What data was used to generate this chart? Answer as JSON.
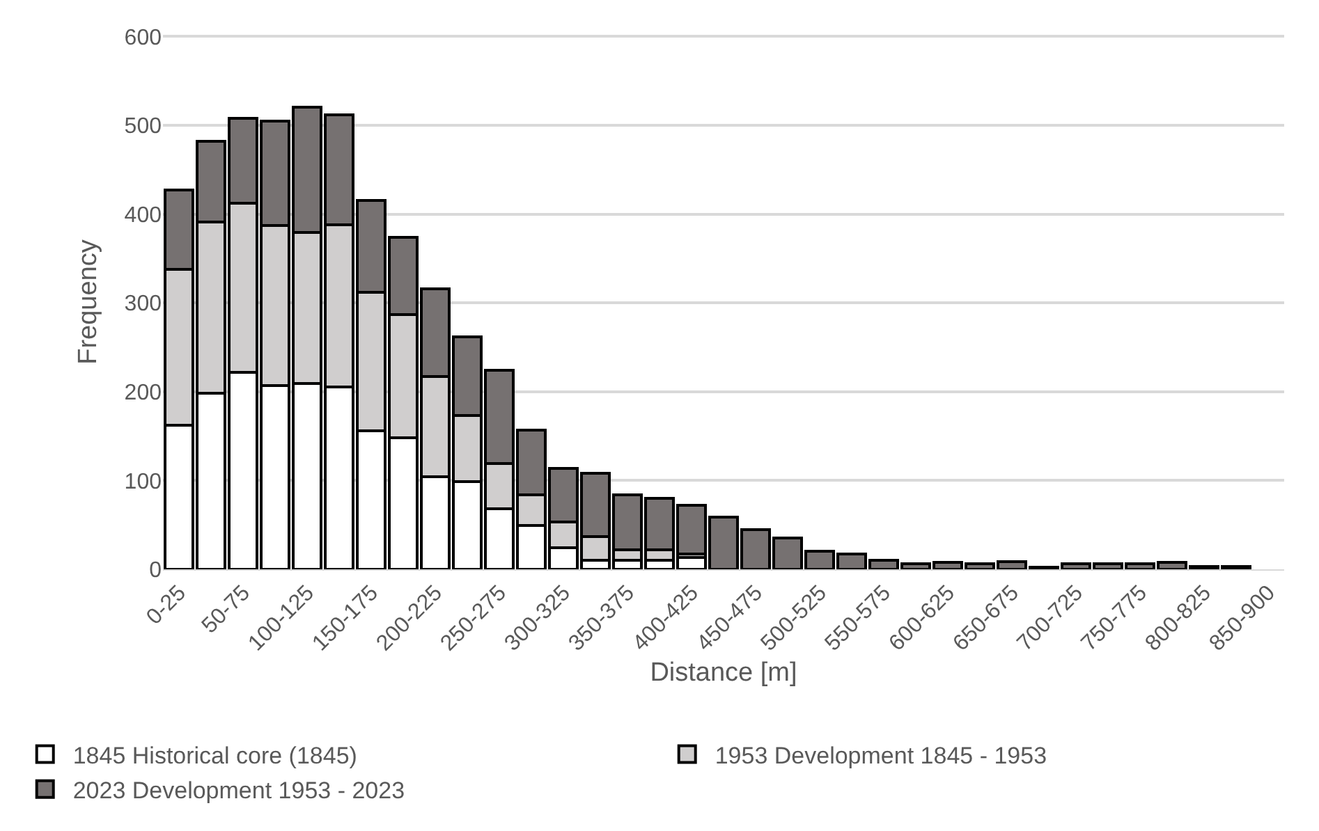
{
  "chart_data": {
    "type": "bar",
    "stacked": true,
    "xlabel": "Distance [m]",
    "ylabel": "Frequency",
    "categories": [
      "0-25",
      null,
      "50-75",
      null,
      "100-125",
      null,
      "150-175",
      null,
      "200-225",
      null,
      "250-275",
      null,
      "300-325",
      null,
      "350-375",
      null,
      "400-425",
      null,
      "450-475",
      null,
      "500-525",
      null,
      "550-575",
      null,
      "600-625",
      null,
      "650-675",
      null,
      "700-725",
      null,
      "750-775",
      null,
      "800-825",
      null,
      "850-900"
    ],
    "series": [
      {
        "name": "1845 Historical core (1845)",
        "color": "#ffffff",
        "values": [
          162,
          198,
          222,
          207,
          209,
          205,
          156,
          148,
          104,
          99,
          68,
          49,
          24,
          10,
          10,
          10,
          13,
          null,
          null,
          null,
          0,
          0,
          0,
          0,
          0,
          0,
          0,
          0,
          0,
          0,
          0,
          0,
          0,
          0,
          0
        ]
      },
      {
        "name": "1953 Development 1845 - 1953",
        "color": "#d0cece",
        "values": [
          176,
          193,
          190,
          180,
          170,
          183,
          156,
          139,
          113,
          74,
          51,
          35,
          29,
          27,
          12,
          12,
          4,
          null,
          null,
          null,
          0,
          0,
          0,
          0,
          0,
          0,
          0,
          0,
          0,
          0,
          0,
          0,
          0,
          0,
          0
        ]
      },
      {
        "name": "2023 Development 1953 - 2023",
        "color": "#767171",
        "values": [
          89,
          91,
          96,
          118,
          141,
          124,
          103,
          87,
          99,
          89,
          105,
          73,
          61,
          71,
          62,
          58,
          55,
          59,
          45,
          35,
          20,
          17,
          10,
          6,
          8,
          6,
          9,
          2,
          6,
          6,
          6,
          8,
          3,
          3,
          0
        ]
      }
    ],
    "ylim": [
      0,
      600
    ],
    "yticks": [
      0,
      100,
      200,
      300,
      400,
      500,
      600
    ],
    "grid": "y",
    "legend": "bottom"
  }
}
